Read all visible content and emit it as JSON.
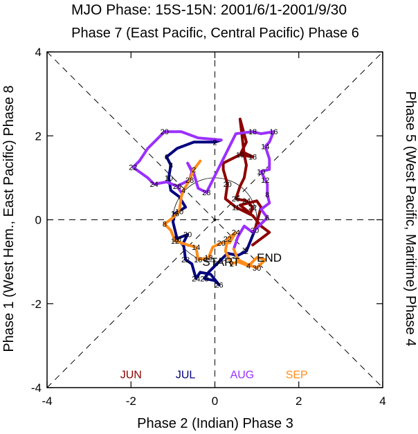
{
  "chart_data": {
    "type": "line",
    "title": "MJO Phase: 15S-15N: 2001/6/1-2001/9/30",
    "top_label": "Phase 7 (East Pacific, Central Pacific) Phase 6",
    "xlabel": "Phase 2 (Indian) Phase 3",
    "left_label": "Phase 1 (West Hem., East Pacific) Phase 8",
    "right_label": "Phase 5 (West Pacific, Maritime) Phase 4",
    "xlim": [
      -4,
      4
    ],
    "ylim": [
      -4,
      4
    ],
    "xticks": [
      -4,
      -2,
      0,
      2,
      4
    ],
    "yticks": [
      -4,
      -2,
      0,
      2,
      4
    ],
    "start_label": "START",
    "end_label": "END",
    "start_point": [
      -0.3,
      -1.0
    ],
    "end_point": [
      1.0,
      -0.9
    ],
    "series": [
      {
        "name": "JUN",
        "color": "#8b0000",
        "points": [
          {
            "x": 0.9,
            "y": -0.6,
            "label": ""
          },
          {
            "x": 1.1,
            "y": -0.45,
            "label": ""
          },
          {
            "x": 1.3,
            "y": -0.3,
            "label": ""
          },
          {
            "x": 1.1,
            "y": -0.15,
            "label": ""
          },
          {
            "x": 0.9,
            "y": 0.1,
            "label": ""
          },
          {
            "x": 0.5,
            "y": 0.3,
            "label": "11"
          },
          {
            "x": 0.25,
            "y": 0.5,
            "label": ""
          },
          {
            "x": 0.3,
            "y": 0.85,
            "label": "20"
          },
          {
            "x": 0.2,
            "y": 1.2,
            "label": ""
          },
          {
            "x": 0.2,
            "y": 1.35,
            "label": ""
          },
          {
            "x": 0.5,
            "y": 1.5,
            "label": ""
          },
          {
            "x": 0.7,
            "y": 1.6,
            "label": ""
          },
          {
            "x": 0.9,
            "y": 1.5,
            "label": "18"
          },
          {
            "x": 0.6,
            "y": 1.55,
            "label": "19"
          },
          {
            "x": 0.75,
            "y": 1.85,
            "label": ""
          },
          {
            "x": 0.6,
            "y": 2.4,
            "label": ""
          },
          {
            "x": 0.7,
            "y": 1.55,
            "label": ""
          },
          {
            "x": 0.75,
            "y": 1.3,
            "label": ""
          },
          {
            "x": 0.7,
            "y": 1.0,
            "label": ""
          },
          {
            "x": 0.6,
            "y": 0.8,
            "label": ""
          },
          {
            "x": 0.5,
            "y": 0.5,
            "label": "26"
          },
          {
            "x": 0.75,
            "y": 0.45,
            "label": "24"
          },
          {
            "x": 0.9,
            "y": 0.3,
            "label": "22"
          },
          {
            "x": 0.85,
            "y": 0.15,
            "label": ""
          },
          {
            "x": 0.6,
            "y": 0.35,
            "label": ""
          },
          {
            "x": 1.0,
            "y": 0.45,
            "label": ""
          },
          {
            "x": 1.1,
            "y": 0.3,
            "label": ""
          },
          {
            "x": 0.95,
            "y": -0.25,
            "label": "30"
          }
        ]
      },
      {
        "name": "JUL",
        "color": "#00007f",
        "points": [
          {
            "x": 0.95,
            "y": -0.25,
            "label": ""
          },
          {
            "x": 0.75,
            "y": -0.75,
            "label": "2"
          },
          {
            "x": 0.55,
            "y": -0.85,
            "label": ""
          },
          {
            "x": 0.3,
            "y": -0.8,
            "label": ""
          },
          {
            "x": 0.05,
            "y": -1.05,
            "label": ""
          },
          {
            "x": -0.15,
            "y": -1.25,
            "label": ""
          },
          {
            "x": -0.25,
            "y": -1.4,
            "label": "28"
          },
          {
            "x": 0.0,
            "y": -1.45,
            "label": ""
          },
          {
            "x": 0.1,
            "y": -1.55,
            "label": "26"
          },
          {
            "x": -0.1,
            "y": -1.3,
            "label": ""
          },
          {
            "x": -0.35,
            "y": -1.25,
            "label": ""
          },
          {
            "x": -0.45,
            "y": -1.4,
            "label": "24"
          },
          {
            "x": -0.55,
            "y": -1.05,
            "label": ""
          },
          {
            "x": -0.7,
            "y": -0.95,
            "label": "22"
          },
          {
            "x": -0.75,
            "y": -0.55,
            "label": ""
          },
          {
            "x": -0.65,
            "y": -0.35,
            "label": "20"
          },
          {
            "x": -0.9,
            "y": -0.45,
            "label": "18"
          },
          {
            "x": -0.95,
            "y": -0.25,
            "label": ""
          },
          {
            "x": -1.0,
            "y": -0.05,
            "label": ""
          },
          {
            "x": -0.95,
            "y": 0.15,
            "label": "16"
          },
          {
            "x": -0.7,
            "y": 0.3,
            "label": ""
          },
          {
            "x": -0.85,
            "y": 0.55,
            "label": ""
          },
          {
            "x": -1.05,
            "y": 0.7,
            "label": ""
          },
          {
            "x": -1.1,
            "y": 1.0,
            "label": "10"
          },
          {
            "x": -1.05,
            "y": 1.3,
            "label": "8"
          },
          {
            "x": -1.15,
            "y": 1.5,
            "label": "6"
          },
          {
            "x": -0.9,
            "y": 1.7,
            "label": ""
          },
          {
            "x": -0.5,
            "y": 1.85,
            "label": ""
          },
          {
            "x": 0.0,
            "y": 1.85,
            "label": "2"
          },
          {
            "x": 0.15,
            "y": 1.9,
            "label": ""
          }
        ]
      },
      {
        "name": "AUG",
        "color": "#9b30ff",
        "points": [
          {
            "x": 0.15,
            "y": 1.9,
            "label": ""
          },
          {
            "x": -0.4,
            "y": 1.95,
            "label": ""
          },
          {
            "x": -0.8,
            "y": 2.1,
            "label": ""
          },
          {
            "x": -1.2,
            "y": 2.1,
            "label": "20"
          },
          {
            "x": -1.6,
            "y": 1.7,
            "label": ""
          },
          {
            "x": -1.8,
            "y": 1.4,
            "label": ""
          },
          {
            "x": -1.95,
            "y": 1.25,
            "label": "22"
          },
          {
            "x": -1.6,
            "y": 1.0,
            "label": ""
          },
          {
            "x": -1.45,
            "y": 0.85,
            "label": "24"
          },
          {
            "x": -1.15,
            "y": 0.9,
            "label": ""
          },
          {
            "x": -0.9,
            "y": 0.8,
            "label": ""
          },
          {
            "x": -0.8,
            "y": 0.65,
            "label": ""
          },
          {
            "x": -0.9,
            "y": 0.8,
            "label": "26"
          },
          {
            "x": -0.6,
            "y": 0.95,
            "label": "28"
          },
          {
            "x": -0.55,
            "y": 1.15,
            "label": ""
          },
          {
            "x": -0.65,
            "y": 1.35,
            "label": ""
          },
          {
            "x": -0.5,
            "y": 1.1,
            "label": ""
          },
          {
            "x": -0.4,
            "y": 0.75,
            "label": ""
          },
          {
            "x": -0.2,
            "y": 0.65,
            "label": "28"
          },
          {
            "x": 0.5,
            "y": 2.05,
            "label": ""
          },
          {
            "x": 0.9,
            "y": 2.1,
            "label": "18"
          },
          {
            "x": 1.1,
            "y": 2.05,
            "label": ""
          },
          {
            "x": 1.4,
            "y": 2.1,
            "label": "16"
          },
          {
            "x": 1.3,
            "y": 1.85,
            "label": ""
          },
          {
            "x": 1.2,
            "y": 1.75,
            "label": "14"
          },
          {
            "x": 1.3,
            "y": 1.45,
            "label": ""
          },
          {
            "x": 1.3,
            "y": 1.2,
            "label": ""
          },
          {
            "x": 1.1,
            "y": 1.15,
            "label": "10"
          },
          {
            "x": 1.2,
            "y": 0.95,
            "label": "12"
          },
          {
            "x": 1.25,
            "y": 0.85,
            "label": ""
          },
          {
            "x": 1.25,
            "y": 0.6,
            "label": "8"
          },
          {
            "x": 1.3,
            "y": 0.4,
            "label": ""
          },
          {
            "x": 1.1,
            "y": 0.25,
            "label": ""
          },
          {
            "x": 1.25,
            "y": 0.05,
            "label": "6"
          },
          {
            "x": 1.1,
            "y": -0.1,
            "label": ""
          },
          {
            "x": 0.9,
            "y": -0.3,
            "label": ""
          },
          {
            "x": 0.7,
            "y": -0.15,
            "label": ""
          },
          {
            "x": 0.55,
            "y": -0.4,
            "label": ""
          },
          {
            "x": 0.45,
            "y": -0.7,
            "label": ""
          }
        ]
      },
      {
        "name": "SEP",
        "color": "#ff8c1a",
        "points": [
          {
            "x": 0.45,
            "y": -0.7,
            "label": ""
          },
          {
            "x": 0.55,
            "y": -0.95,
            "label": ""
          },
          {
            "x": 0.75,
            "y": -1.05,
            "label": ""
          },
          {
            "x": 1.0,
            "y": -1.15,
            "label": "30"
          },
          {
            "x": 1.2,
            "y": -0.95,
            "label": ""
          },
          {
            "x": 1.0,
            "y": -0.9,
            "label": ""
          },
          {
            "x": 0.8,
            "y": -1.1,
            "label": "4"
          },
          {
            "x": 0.55,
            "y": -1.0,
            "label": ""
          },
          {
            "x": 0.4,
            "y": -1.05,
            "label": "2"
          },
          {
            "x": 0.25,
            "y": -0.75,
            "label": ""
          },
          {
            "x": 0.3,
            "y": -0.45,
            "label": "22"
          },
          {
            "x": 0.5,
            "y": -0.3,
            "label": "24"
          },
          {
            "x": 0.35,
            "y": -0.55,
            "label": ""
          },
          {
            "x": 0.15,
            "y": -0.55,
            "label": "20"
          },
          {
            "x": -0.05,
            "y": -0.65,
            "label": ""
          },
          {
            "x": -0.15,
            "y": -0.9,
            "label": "18"
          },
          {
            "x": -0.4,
            "y": -0.95,
            "label": "16"
          },
          {
            "x": -0.45,
            "y": -0.65,
            "label": "14"
          },
          {
            "x": -0.65,
            "y": -0.6,
            "label": ""
          },
          {
            "x": -0.95,
            "y": -0.5,
            "label": "12"
          },
          {
            "x": -1.05,
            "y": -0.25,
            "label": ""
          },
          {
            "x": -1.2,
            "y": -0.1,
            "label": "8"
          },
          {
            "x": -1.0,
            "y": 0.05,
            "label": ""
          },
          {
            "x": -0.85,
            "y": 0.2,
            "label": "10"
          },
          {
            "x": -0.8,
            "y": 0.55,
            "label": ""
          },
          {
            "x": -0.75,
            "y": 0.7,
            "label": "4"
          },
          {
            "x": -0.6,
            "y": 0.95,
            "label": ""
          },
          {
            "x": -0.5,
            "y": 1.2,
            "label": "2"
          },
          {
            "x": -0.35,
            "y": 1.4,
            "label": ""
          }
        ]
      }
    ]
  }
}
